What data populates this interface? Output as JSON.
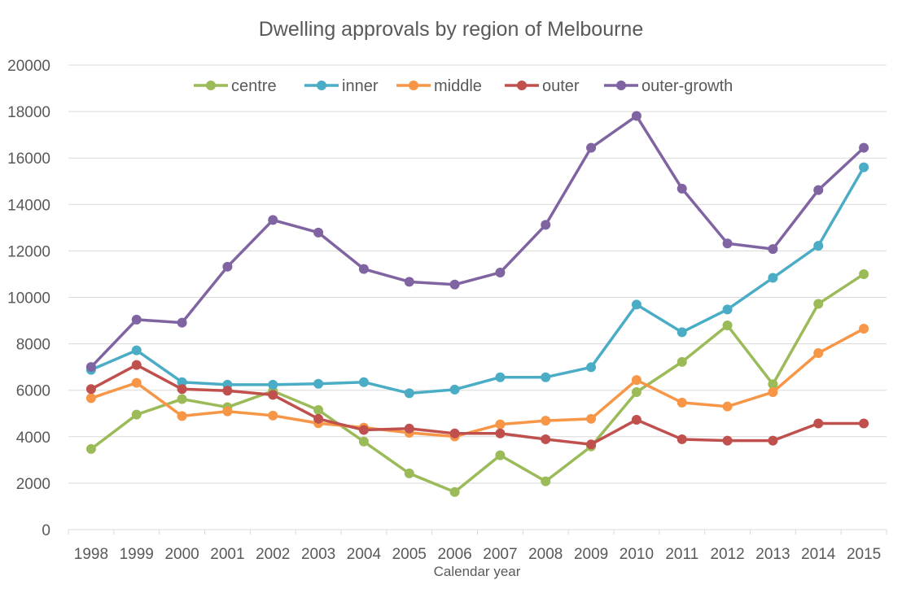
{
  "chart_data": {
    "type": "line",
    "title": "Dwelling approvals by region of Melbourne",
    "xlabel": "Calendar year",
    "ylabel": "",
    "ylim": [
      0,
      20000
    ],
    "yticks": [
      "0",
      "2000",
      "4000",
      "6000",
      "8000",
      "10000",
      "12000",
      "14000",
      "16000",
      "18000",
      "20000"
    ],
    "grid": true,
    "legend_position": "top",
    "categories": [
      "1998",
      "1999",
      "2000",
      "2001",
      "2002",
      "2003",
      "2004",
      "2005",
      "2006",
      "2007",
      "2008",
      "2009",
      "2010",
      "2011",
      "2012",
      "2013",
      "2014",
      "2015"
    ],
    "series": [
      {
        "name": "centre",
        "color": "#9BBB59",
        "values": [
          3470,
          4950,
          5620,
          5270,
          5970,
          5150,
          3790,
          2420,
          1620,
          3200,
          2080,
          3580,
          5920,
          7220,
          8790,
          6260,
          9720,
          11000
        ]
      },
      {
        "name": "inner",
        "color": "#4BACC6",
        "values": [
          6880,
          7720,
          6350,
          6240,
          6240,
          6280,
          6350,
          5870,
          6030,
          6560,
          6560,
          6990,
          9690,
          8500,
          9480,
          10840,
          12220,
          15600
        ]
      },
      {
        "name": "middle",
        "color": "#F79646",
        "values": [
          5660,
          6320,
          4890,
          5090,
          4910,
          4580,
          4390,
          4170,
          4010,
          4530,
          4690,
          4770,
          6440,
          5470,
          5300,
          5920,
          7600,
          8650
        ]
      },
      {
        "name": "outer",
        "color": "#C0504D",
        "values": [
          6050,
          7090,
          6050,
          5980,
          5800,
          4770,
          4290,
          4350,
          4140,
          4140,
          3890,
          3670,
          4730,
          3890,
          3830,
          3830,
          4570,
          4570
        ]
      },
      {
        "name": "outer-growth",
        "color": "#8064A2",
        "values": [
          7000,
          9040,
          8910,
          11320,
          13330,
          12790,
          11220,
          10670,
          10550,
          11070,
          13120,
          16440,
          17810,
          14680,
          12320,
          12080,
          14620,
          16440
        ]
      }
    ]
  }
}
